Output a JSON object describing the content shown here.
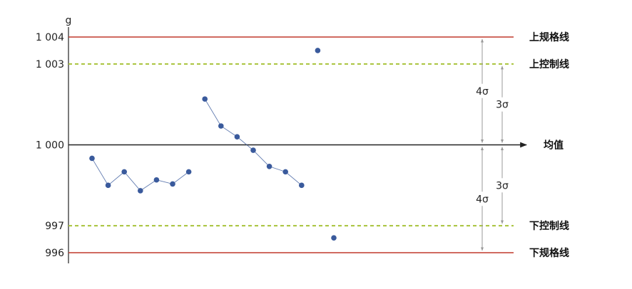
{
  "chart_data": {
    "type": "scatter",
    "title": "",
    "ylabel": "g",
    "xlabel": "",
    "ylim": [
      995.7,
      1004.6
    ],
    "grid": false,
    "legend": "none",
    "y_ticks": [
      {
        "value": 1004,
        "label": "1 004"
      },
      {
        "value": 1003,
        "label": "1 003"
      },
      {
        "value": 1000,
        "label": "1 000"
      },
      {
        "value": 997,
        "label": "997"
      },
      {
        "value": 996,
        "label": "996"
      }
    ],
    "reference_lines": [
      {
        "value": 1004,
        "label": "上规格线",
        "color": "#c0392b",
        "style": "solid"
      },
      {
        "value": 1003,
        "label": "上控制线",
        "color": "#a8c23a",
        "style": "dashed"
      },
      {
        "value": 1000,
        "label": "均值",
        "color": "#222222",
        "style": "arrow"
      },
      {
        "value": 997,
        "label": "下控制线",
        "color": "#a8c23a",
        "style": "dashed"
      },
      {
        "value": 996,
        "label": "下规格线",
        "color": "#c0392b",
        "style": "solid"
      }
    ],
    "annotations": [
      {
        "label": "4σ",
        "from": 1004,
        "to": 1000
      },
      {
        "label": "3σ",
        "from": 1003,
        "to": 1000
      },
      {
        "label": "4σ",
        "from": 1000,
        "to": 996
      },
      {
        "label": "3σ",
        "from": 1000,
        "to": 997
      }
    ],
    "series": [
      {
        "x": [
          1,
          2,
          3,
          4,
          5,
          6,
          7
        ],
        "y": [
          999.5,
          998.5,
          999.0,
          998.3,
          998.7,
          998.55,
          999.0
        ],
        "connected": true
      },
      {
        "x": [
          8,
          9,
          10,
          11,
          12,
          13,
          14
        ],
        "y": [
          1001.7,
          1000.7,
          1000.3,
          999.8,
          999.2,
          999.0,
          998.5
        ],
        "connected": true
      },
      {
        "x": [
          15
        ],
        "y": [
          1003.5
        ],
        "connected": false
      },
      {
        "x": [
          16
        ],
        "y": [
          996.55
        ],
        "connected": false
      }
    ],
    "marker_color": "#3a5a9c",
    "line_color": "#3a5a9c"
  }
}
